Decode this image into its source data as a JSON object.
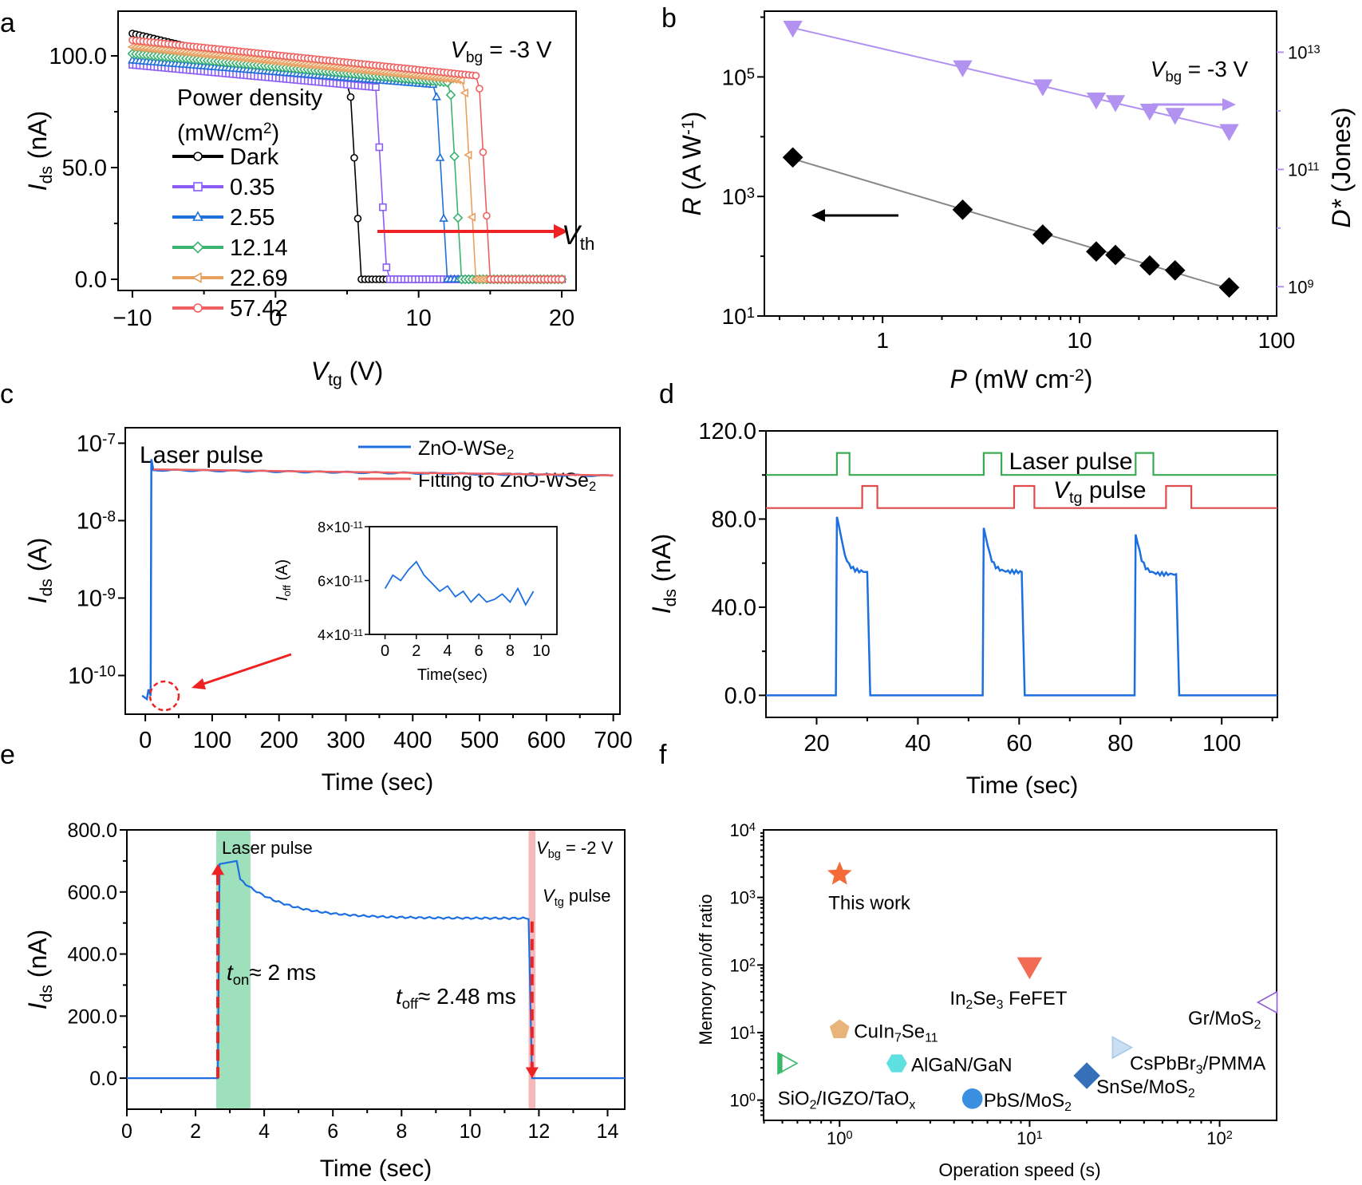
{
  "colors": {
    "black": "#000000",
    "purple": "#8b5cf6",
    "blue": "#1f6fd8",
    "green": "#3cb371",
    "orange": "#e8a060",
    "red": "#f06060",
    "lav": "#b292f0",
    "arrow_red": "#ee2222",
    "laser_green": "#3aaa55",
    "vtg_red": "#e04a4a",
    "ids_blue": "#1c6fe0"
  },
  "chart_data": [
    {
      "panel": "a",
      "type": "line",
      "xlabel": "V",
      "xlabel_sub": "tg",
      "xlabel_unit": " (V)",
      "ylabel": "I",
      "ylabel_sub": "ds",
      "ylabel_unit": " (nA)",
      "xlim": [
        -11,
        21
      ],
      "ylim": [
        -5,
        120
      ],
      "xticks": [
        "−10",
        "0",
        "10",
        "20"
      ],
      "xtick_values": [
        -10,
        0,
        10,
        20
      ],
      "yticks": [
        "0.0",
        "50.0",
        "100.0"
      ],
      "ytick_values": [
        0,
        50,
        100
      ],
      "annotation": {
        "main": "V",
        "sub": "bg",
        "rest": " = -3 V"
      },
      "legend_title": "Power density",
      "legend_unit": {
        "main": "(mW/cm",
        "sup": "2",
        "end": ")"
      },
      "vth": {
        "main": "V",
        "sub": "th"
      },
      "series": [
        {
          "name": "Dark",
          "color_key": "black",
          "marker": "circle",
          "start": 110,
          "end": 87,
          "vth": 6.0
        },
        {
          "name": "0.35",
          "color_key": "purple",
          "marker": "square",
          "start": 96,
          "end": 86,
          "vth": 7.8
        },
        {
          "name": "2.55",
          "color_key": "blue",
          "marker": "triangle",
          "start": 98,
          "end": 87,
          "vth": 12.0
        },
        {
          "name": "12.14",
          "color_key": "green",
          "marker": "diamond",
          "start": 101,
          "end": 88,
          "vth": 13.0
        },
        {
          "name": "22.69",
          "color_key": "orange",
          "marker": "tri-left",
          "start": 104,
          "end": 89,
          "vth": 14.0
        },
        {
          "name": "57.42",
          "color_key": "red",
          "marker": "circle",
          "start": 107,
          "end": 91,
          "vth": 15.0
        }
      ]
    },
    {
      "panel": "b",
      "type": "scatter",
      "xlabel": "P",
      "xlabel_rest": " (mW cm",
      "xlabel_sup": "-2",
      "xlabel_end": ")",
      "ylabel": "R",
      "ylabel_rest": " (A W",
      "ylabel_sup": "-1",
      "ylabel_end": ")",
      "y2label": "D*",
      "y2label_rest": " (Jones)",
      "xlim_log10": [
        -0.6,
        2
      ],
      "ylim_log10": [
        1,
        6.1
      ],
      "xticks": [
        "1",
        "10",
        "100"
      ],
      "xtick_values": [
        1,
        10,
        100
      ],
      "yticks": [
        {
          "base": "10",
          "exp": "1",
          "value": 10
        },
        {
          "base": "10",
          "exp": "3",
          "value": 1000
        },
        {
          "base": "10",
          "exp": "5",
          "value": 100000
        }
      ],
      "y2ticks": [
        {
          "base": "10",
          "exp": "9",
          "value": 1000000000.0
        },
        {
          "base": "10",
          "exp": "11",
          "value": 100000000000.0
        },
        {
          "base": "10",
          "exp": "13",
          "value": 10000000000000.0
        }
      ],
      "y2lim_log10": [
        8.5,
        13.7
      ],
      "annotation": {
        "main": "V",
        "sub": "bg",
        "rest": " = -3 V"
      },
      "series": [
        {
          "name": "R",
          "axis": "left",
          "color_key": "black",
          "marker": "diamond",
          "x": [
            0.35,
            2.55,
            6.5,
            12.14,
            15.2,
            22.69,
            30.5,
            57.42
          ],
          "y": [
            4500,
            600,
            230,
            120,
            105,
            70,
            58,
            30
          ]
        },
        {
          "name": "D*",
          "axis": "right",
          "color_key": "lav",
          "marker": "tri-down",
          "x": [
            0.35,
            2.55,
            6.5,
            12.14,
            15.2,
            22.69,
            30.5,
            57.42
          ],
          "y": [
            26000000000000.0,
            5500000000000.0,
            2600000000000.0,
            1550000000000.0,
            1400000000000.0,
            1000000000000.0,
            850000000000.0,
            450000000000.0
          ]
        }
      ]
    },
    {
      "panel": "c",
      "type": "line",
      "xlabel": "Time (sec)",
      "ylabel": "I",
      "ylabel_sub": "ds",
      "ylabel_unit": " (A)",
      "xlim": [
        -30,
        710
      ],
      "ylim_log10": [
        -10.5,
        -6.8
      ],
      "xticks": [
        "0",
        "100",
        "200",
        "300",
        "400",
        "500",
        "600",
        "700"
      ],
      "xtick_values": [
        0,
        100,
        200,
        300,
        400,
        500,
        600,
        700
      ],
      "yticks": [
        {
          "base": "10",
          "exp": "-10",
          "value": -10
        },
        {
          "base": "10",
          "exp": "-9",
          "value": -9
        },
        {
          "base": "10",
          "exp": "-8",
          "value": -8
        },
        {
          "base": "10",
          "exp": "-7",
          "value": -7
        }
      ],
      "annotation": "Laser pulse",
      "legend": [
        {
          "main": "ZnO-WSe",
          "sub": "2",
          "color_key": "ids_blue"
        },
        {
          "main": "Fitting to ZnO-WSe",
          "sub": "2",
          "color_key": "red"
        }
      ],
      "off_current": 5.5e-11,
      "on_peak": 6.2e-08,
      "on_plateau": 4.5e-08,
      "on_end": 3.8e-08,
      "inset": {
        "xlabel": "Time(sec)",
        "ylabel": "I",
        "ylabel_sub": "off",
        "ylabel_unit": " (A)",
        "xlim": [
          -1,
          11
        ],
        "ylim": [
          4e-11,
          8e-11
        ],
        "xticks": [
          "0",
          "2",
          "4",
          "6",
          "8",
          "10"
        ],
        "xtick_values": [
          0,
          2,
          4,
          6,
          8,
          10
        ],
        "yticks": [
          {
            "mant": "4×10",
            "exp": "-11",
            "value": 4e-11
          },
          {
            "mant": "6×10",
            "exp": "-11",
            "value": 6e-11
          },
          {
            "mant": "8×10",
            "exp": "-11",
            "value": 8e-11
          }
        ],
        "x": [
          0,
          0.5,
          1,
          1.5,
          2,
          2.5,
          3,
          3.5,
          4,
          4.5,
          5,
          5.5,
          6,
          6.5,
          7,
          7.5,
          8,
          8.5,
          9,
          9.5
        ],
        "y": [
          5.7e-11,
          6.2e-11,
          6e-11,
          6.4e-11,
          6.7e-11,
          6.2e-11,
          5.9e-11,
          5.6e-11,
          5.8e-11,
          5.4e-11,
          5.6e-11,
          5.2e-11,
          5.5e-11,
          5.2e-11,
          5.3e-11,
          5.5e-11,
          5.2e-11,
          5.7e-11,
          5.1e-11,
          5.6e-11
        ]
      }
    },
    {
      "panel": "d",
      "type": "line",
      "xlabel": "Time (sec)",
      "ylabel": "I",
      "ylabel_sub": "ds",
      "ylabel_unit": " (nA)",
      "xlim": [
        10,
        111
      ],
      "ylim": [
        -10,
        120
      ],
      "xticks": [
        "20",
        "40",
        "60",
        "80",
        "100"
      ],
      "xtick_values": [
        20,
        40,
        60,
        80,
        100
      ],
      "yticks": [
        "0.0",
        "40.0",
        "80.0",
        "120.0"
      ],
      "ytick_values": [
        0,
        40,
        80,
        120
      ],
      "labels": [
        {
          "main": "Laser pulse"
        },
        {
          "main": "V",
          "sub": "tg",
          "rest": " pulse"
        }
      ],
      "laser_level": 100,
      "laser_high": 110,
      "vtg_level": 85,
      "vtg_high": 95,
      "laser_pulses": [
        [
          24,
          26.5
        ],
        [
          53,
          56.5
        ],
        [
          83,
          86.5
        ]
      ],
      "vtg_pulses": [
        [
          29,
          32
        ],
        [
          59,
          63
        ],
        [
          89,
          94
        ]
      ],
      "current_pulses": [
        {
          "t_on": 24,
          "t_off": 30,
          "peak": 81,
          "plateau": 56
        },
        {
          "t_on": 53,
          "t_off": 60.5,
          "peak": 76,
          "plateau": 56
        },
        {
          "t_on": 83,
          "t_off": 91,
          "peak": 73,
          "plateau": 55
        }
      ]
    },
    {
      "panel": "e",
      "type": "line",
      "xlabel": "Time (sec)",
      "ylabel": "I",
      "ylabel_sub": "ds",
      "ylabel_unit": " (nA)",
      "xlim": [
        0,
        14.5
      ],
      "ylim": [
        -100,
        800
      ],
      "xticks": [
        "0",
        "2",
        "4",
        "6",
        "8",
        "10",
        "12",
        "14"
      ],
      "xtick_values": [
        0,
        2,
        4,
        6,
        8,
        10,
        12,
        14
      ],
      "yticks": [
        "0.0",
        "200.0",
        "400.0",
        "600.0",
        "800.0"
      ],
      "ytick_values": [
        0,
        200,
        400,
        600,
        800
      ],
      "laser_window": [
        2.6,
        3.6
      ],
      "vtg_window": [
        11.7,
        11.9
      ],
      "labels": {
        "laser": "Laser pulse",
        "vbg": {
          "main": "V",
          "sub": "bg",
          "rest": " = -2 V"
        },
        "vtg": {
          "main": "V",
          "sub": "tg",
          "rest": " pulse"
        },
        "ton": {
          "main": "t",
          "sub": "on",
          "rest": "≈ 2 ms"
        },
        "toff": {
          "main": "t",
          "sub": "off",
          "rest": "≈ 2.48 ms"
        }
      },
      "t_on": 2.65,
      "t_off": 11.8,
      "peak": 700,
      "end_value": 515
    },
    {
      "panel": "f",
      "type": "scatter",
      "xlabel": "Operation speed (s)",
      "ylabel": "Memory on/off ratio",
      "xlim_log10": [
        -0.4,
        2.3
      ],
      "ylim_log10": [
        -0.3,
        4
      ],
      "xticks": [
        {
          "base": "10",
          "exp": "0",
          "value": 1
        },
        {
          "base": "10",
          "exp": "1",
          "value": 10
        },
        {
          "base": "10",
          "exp": "2",
          "value": 100
        }
      ],
      "yticks": [
        {
          "base": "10",
          "exp": "0",
          "value": 1
        },
        {
          "base": "10",
          "exp": "1",
          "value": 10
        },
        {
          "base": "10",
          "exp": "2",
          "value": 100
        },
        {
          "base": "10",
          "exp": "3",
          "value": 1000
        },
        {
          "base": "10",
          "exp": "4",
          "value": 10000
        }
      ],
      "points": [
        {
          "label": "This work",
          "parts": [
            {
              "t": "This work"
            }
          ],
          "x": 1,
          "y": 2200,
          "marker": "star",
          "color": "#f26b38"
        },
        {
          "label": "In2Se3 FeFET",
          "parts": [
            {
              "t": "In"
            },
            {
              "t": "2",
              "sub": true
            },
            {
              "t": "Se"
            },
            {
              "t": "3",
              "sub": true
            },
            {
              "t": " FeFET"
            }
          ],
          "x": 10,
          "y": 95,
          "marker": "tri-down",
          "color": "#f26b55"
        },
        {
          "label": "Gr/MoS2",
          "parts": [
            {
              "t": "Gr/MoS"
            },
            {
              "t": "2",
              "sub": true
            }
          ],
          "x": 190,
          "y": 28,
          "marker": "tri-left-open",
          "color": "#8f5ad8"
        },
        {
          "label": "CuIn7Se11",
          "parts": [
            {
              "t": "CuIn"
            },
            {
              "t": "7",
              "sub": true
            },
            {
              "t": "Se"
            },
            {
              "t": "11",
              "sub": true
            }
          ],
          "x": 1,
          "y": 11,
          "marker": "pentagon",
          "color": "#e8b47a"
        },
        {
          "label": "CsPbBr3/PMMA",
          "parts": [
            {
              "t": "CsPbBr"
            },
            {
              "t": "3",
              "sub": true
            },
            {
              "t": "/PMMA"
            }
          ],
          "x": 30,
          "y": 6,
          "marker": "tri-right",
          "color": "#a8c9ea"
        },
        {
          "label": "SiO2/IGZO/TaOx",
          "parts": [
            {
              "t": "SiO"
            },
            {
              "t": "2",
              "sub": true
            },
            {
              "t": "/IGZO/TaO"
            },
            {
              "t": "x",
              "sub": true
            }
          ],
          "x": 0.5,
          "y": 3.5,
          "marker": "tri-right-half",
          "color": "#3ab86a"
        },
        {
          "label": "AlGaN/GaN",
          "parts": [
            {
              "t": "AlGaN/GaN"
            }
          ],
          "x": 2,
          "y": 3.5,
          "marker": "hexagon",
          "color": "#5ee0e0"
        },
        {
          "label": "PbS/MoS2",
          "parts": [
            {
              "t": "PbS/MoS"
            },
            {
              "t": "2",
              "sub": true
            }
          ],
          "x": 5,
          "y": 1.05,
          "marker": "circle",
          "color": "#3a8fe0"
        },
        {
          "label": "SnSe/MoS2",
          "parts": [
            {
              "t": "SnSe/MoS"
            },
            {
              "t": "2",
              "sub": true
            }
          ],
          "x": 20,
          "y": 2.3,
          "marker": "diamond",
          "color": "#3570b8"
        }
      ]
    }
  ],
  "panel_letters": [
    "a",
    "b",
    "c",
    "d",
    "e",
    "f"
  ]
}
